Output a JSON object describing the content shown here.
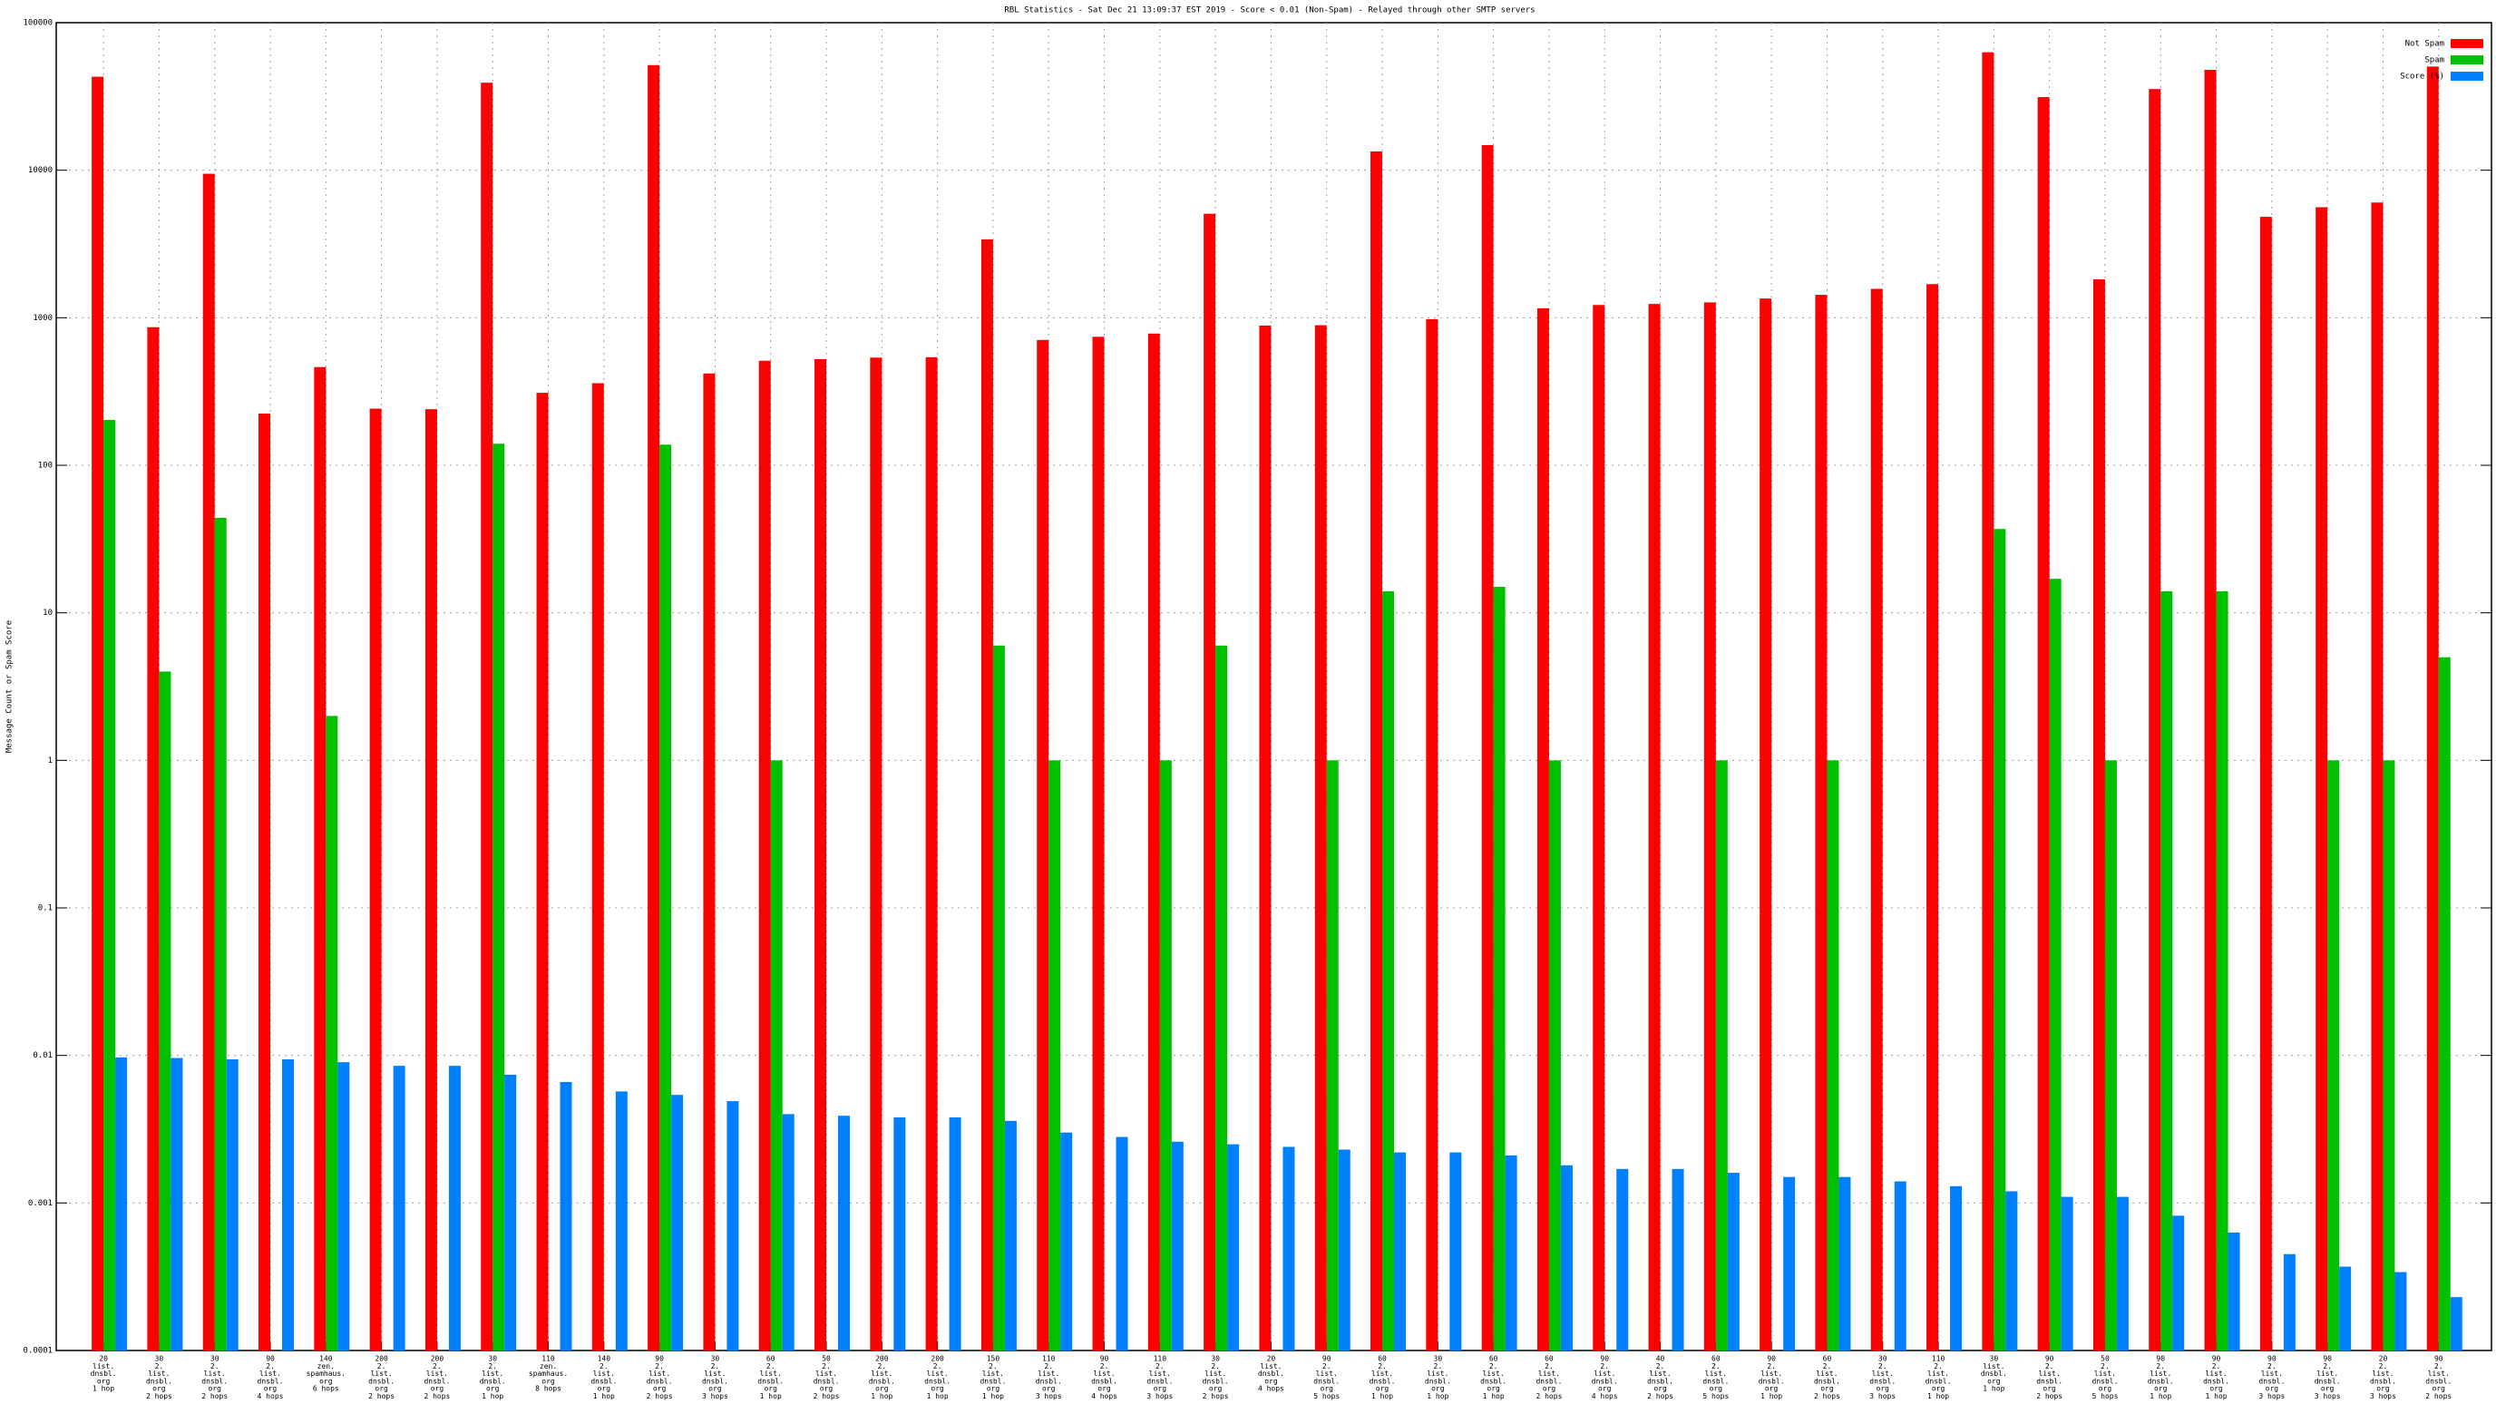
{
  "chart_data": {
    "type": "bar",
    "title": "RBL Statistics - Sat Dec 21 13:09:37 EST 2019 - Score < 0.01 (Non-Spam) - Relayed through other SMTP servers",
    "y_label": "Message Count or Spam Score",
    "log_scale": true,
    "grid": true,
    "legend": "top-right",
    "ylim": [
      0.0001,
      100000
    ],
    "yticks": [
      0.0001,
      0.001,
      0.01,
      0.1,
      1,
      10,
      100,
      1000,
      10000,
      100000
    ],
    "categories": [
      [
        "20",
        "list.",
        "dnsbl.",
        "org",
        "1 hop"
      ],
      [
        "30",
        "2.",
        "list.",
        "dnsbl.",
        "org",
        "2 hops"
      ],
      [
        "30",
        "2.",
        "list.",
        "dnsbl.",
        "org",
        "2 hops"
      ],
      [
        "90",
        "2.",
        "list.",
        "dnsbl.",
        "org",
        "4 hops"
      ],
      [
        "140",
        "zen.",
        "spamhaus.",
        "org",
        "6 hops"
      ],
      [
        "200",
        "2.",
        "list.",
        "dnsbl.",
        "org",
        "2 hops"
      ],
      [
        "200",
        "2.",
        "list.",
        "dnsbl.",
        "org",
        "2 hops"
      ],
      [
        "30",
        "2.",
        "list.",
        "dnsbl.",
        "org",
        "1 hop"
      ],
      [
        "110",
        "zen.",
        "spamhaus.",
        "org",
        "8 hops"
      ],
      [
        "140",
        "2.",
        "list.",
        "dnsbl.",
        "org",
        "1 hop"
      ],
      [
        "90",
        "2.",
        "list.",
        "dnsbl.",
        "org",
        "2 hops"
      ],
      [
        "30",
        "2.",
        "list.",
        "dnsbl.",
        "org",
        "3 hops"
      ],
      [
        "60",
        "2.",
        "list.",
        "dnsbl.",
        "org",
        "1 hop"
      ],
      [
        "50",
        "2.",
        "list.",
        "dnsbl.",
        "org",
        "2 hops"
      ],
      [
        "200",
        "2.",
        "list.",
        "dnsbl.",
        "org",
        "1 hop"
      ],
      [
        "200",
        "2.",
        "list.",
        "dnsbl.",
        "org",
        "1 hop"
      ],
      [
        "150",
        "2.",
        "list.",
        "dnsbl.",
        "org",
        "1 hop"
      ],
      [
        "110",
        "2.",
        "list.",
        "dnsbl.",
        "org",
        "3 hops"
      ],
      [
        "90",
        "2.",
        "list.",
        "dnsbl.",
        "org",
        "4 hops"
      ],
      [
        "110",
        "2.",
        "list.",
        "dnsbl.",
        "org",
        "3 hops"
      ],
      [
        "30",
        "2.",
        "list.",
        "dnsbl.",
        "org",
        "2 hops"
      ],
      [
        "20",
        "list.",
        "dnsbl.",
        "org",
        "4 hops"
      ],
      [
        "90",
        "2.",
        "list.",
        "dnsbl.",
        "org",
        "5 hops"
      ],
      [
        "60",
        "2.",
        "list.",
        "dnsbl.",
        "org",
        "1 hop"
      ],
      [
        "30",
        "2.",
        "list.",
        "dnsbl.",
        "org",
        "1 hop"
      ],
      [
        "60",
        "2.",
        "list.",
        "dnsbl.",
        "org",
        "1 hop"
      ],
      [
        "60",
        "2.",
        "list.",
        "dnsbl.",
        "org",
        "2 hops"
      ],
      [
        "90",
        "2.",
        "list.",
        "dnsbl.",
        "org",
        "4 hops"
      ],
      [
        "40",
        "2.",
        "list.",
        "dnsbl.",
        "org",
        "2 hops"
      ],
      [
        "60",
        "2.",
        "list.",
        "dnsbl.",
        "org",
        "5 hops"
      ],
      [
        "90",
        "2.",
        "list.",
        "dnsbl.",
        "org",
        "1 hop"
      ],
      [
        "60",
        "2.",
        "list.",
        "dnsbl.",
        "org",
        "2 hops"
      ],
      [
        "30",
        "2.",
        "list.",
        "dnsbl.",
        "org",
        "3 hops"
      ],
      [
        "110",
        "2.",
        "list.",
        "dnsbl.",
        "org",
        "1 hop"
      ],
      [
        "30",
        "list.",
        "dnsbl.",
        "org",
        "1 hop"
      ],
      [
        "90",
        "2.",
        "list.",
        "dnsbl.",
        "org",
        "2 hops"
      ],
      [
        "50",
        "2.",
        "list.",
        "dnsbl.",
        "org",
        "5 hops"
      ],
      [
        "90",
        "2.",
        "list.",
        "dnsbl.",
        "org",
        "1 hop"
      ],
      [
        "90",
        "2.",
        "list.",
        "dnsbl.",
        "org",
        "1 hop"
      ],
      [
        "90",
        "2.",
        "list.",
        "dnsbl.",
        "org",
        "3 hops"
      ],
      [
        "90",
        "2.",
        "list.",
        "dnsbl.",
        "org",
        "3 hops"
      ],
      [
        "20",
        "2.",
        "list.",
        "dnsbl.",
        "org",
        "3 hops"
      ],
      [
        "90",
        "2.",
        "list.",
        "dnsbl.",
        "org",
        "2 hops"
      ]
    ],
    "series": [
      {
        "name": "Not Spam",
        "color": "#ff0000",
        "values": [
          43000,
          863,
          9460,
          224,
          463,
          242,
          240,
          39200,
          310,
          360,
          51600,
          419,
          511,
          524,
          537,
          540,
          3400,
          707,
          743,
          781,
          5070,
          885,
          890,
          13400,
          978,
          14800,
          1160,
          1220,
          1240,
          1270,
          1350,
          1430,
          1570,
          1690,
          63000,
          31300,
          1820,
          35500,
          47900,
          4830,
          5610,
          6040,
          50400
        ]
      },
      {
        "name": "Spam",
        "color": "#00c000",
        "values": [
          203,
          4,
          44,
          null,
          2,
          null,
          null,
          140,
          null,
          null,
          138,
          null,
          1,
          null,
          null,
          null,
          6,
          1,
          null,
          1,
          6,
          null,
          1,
          14,
          null,
          15,
          1,
          null,
          null,
          1,
          null,
          1,
          null,
          null,
          37,
          17,
          1,
          14,
          14,
          null,
          1,
          1,
          5
        ]
      },
      {
        "name": "Score (%)",
        "color": "#0080ff",
        "values": [
          0.0097,
          0.0096,
          0.0094,
          0.0094,
          0.009,
          0.0085,
          0.0085,
          0.0074,
          0.0066,
          0.0057,
          0.0054,
          0.0049,
          0.004,
          0.0039,
          0.0038,
          0.0038,
          0.0036,
          0.003,
          0.0028,
          0.0026,
          0.0025,
          0.0024,
          0.0023,
          0.0022,
          0.0022,
          0.0021,
          0.0018,
          0.0017,
          0.0017,
          0.0016,
          0.0015,
          0.0015,
          0.0014,
          0.0013,
          0.0012,
          0.0011,
          0.0011,
          0.00082,
          0.00063,
          0.00045,
          0.00037,
          0.00034,
          0.00023
        ]
      }
    ]
  }
}
